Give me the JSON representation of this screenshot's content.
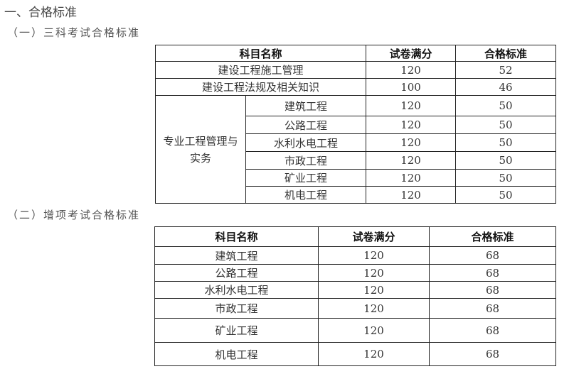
{
  "heading": "一、合格标准",
  "section1": {
    "title": "（一）三科考试合格标准",
    "headers": [
      "科目名称",
      "试卷满分",
      "合格标准"
    ],
    "rows": [
      {
        "name": "建设工程施工管理",
        "full": "120",
        "pass": "52"
      },
      {
        "name": "建设工程法规及相关知识",
        "full": "100",
        "pass": "46"
      }
    ],
    "group_label": "专业工程管理与实务",
    "group_rows": [
      {
        "name": "建筑工程",
        "full": "120",
        "pass": "50"
      },
      {
        "name": "公路工程",
        "full": "120",
        "pass": "50"
      },
      {
        "name": "水利水电工程",
        "full": "120",
        "pass": "50"
      },
      {
        "name": "市政工程",
        "full": "120",
        "pass": "50"
      },
      {
        "name": "矿业工程",
        "full": "120",
        "pass": "50"
      },
      {
        "name": "机电工程",
        "full": "120",
        "pass": "50"
      }
    ]
  },
  "section2": {
    "title": "（二）增项考试合格标准",
    "headers": [
      "科目名称",
      "试卷满分",
      "合格标准"
    ],
    "rows": [
      {
        "name": "建筑工程",
        "full": "120",
        "pass": "68"
      },
      {
        "name": "公路工程",
        "full": "120",
        "pass": "68"
      },
      {
        "name": "水利水电工程",
        "full": "120",
        "pass": "68"
      },
      {
        "name": "市政工程",
        "full": "120",
        "pass": "68"
      },
      {
        "name": "矿业工程",
        "full": "120",
        "pass": "68"
      },
      {
        "name": "机电工程",
        "full": "120",
        "pass": "68"
      }
    ]
  }
}
